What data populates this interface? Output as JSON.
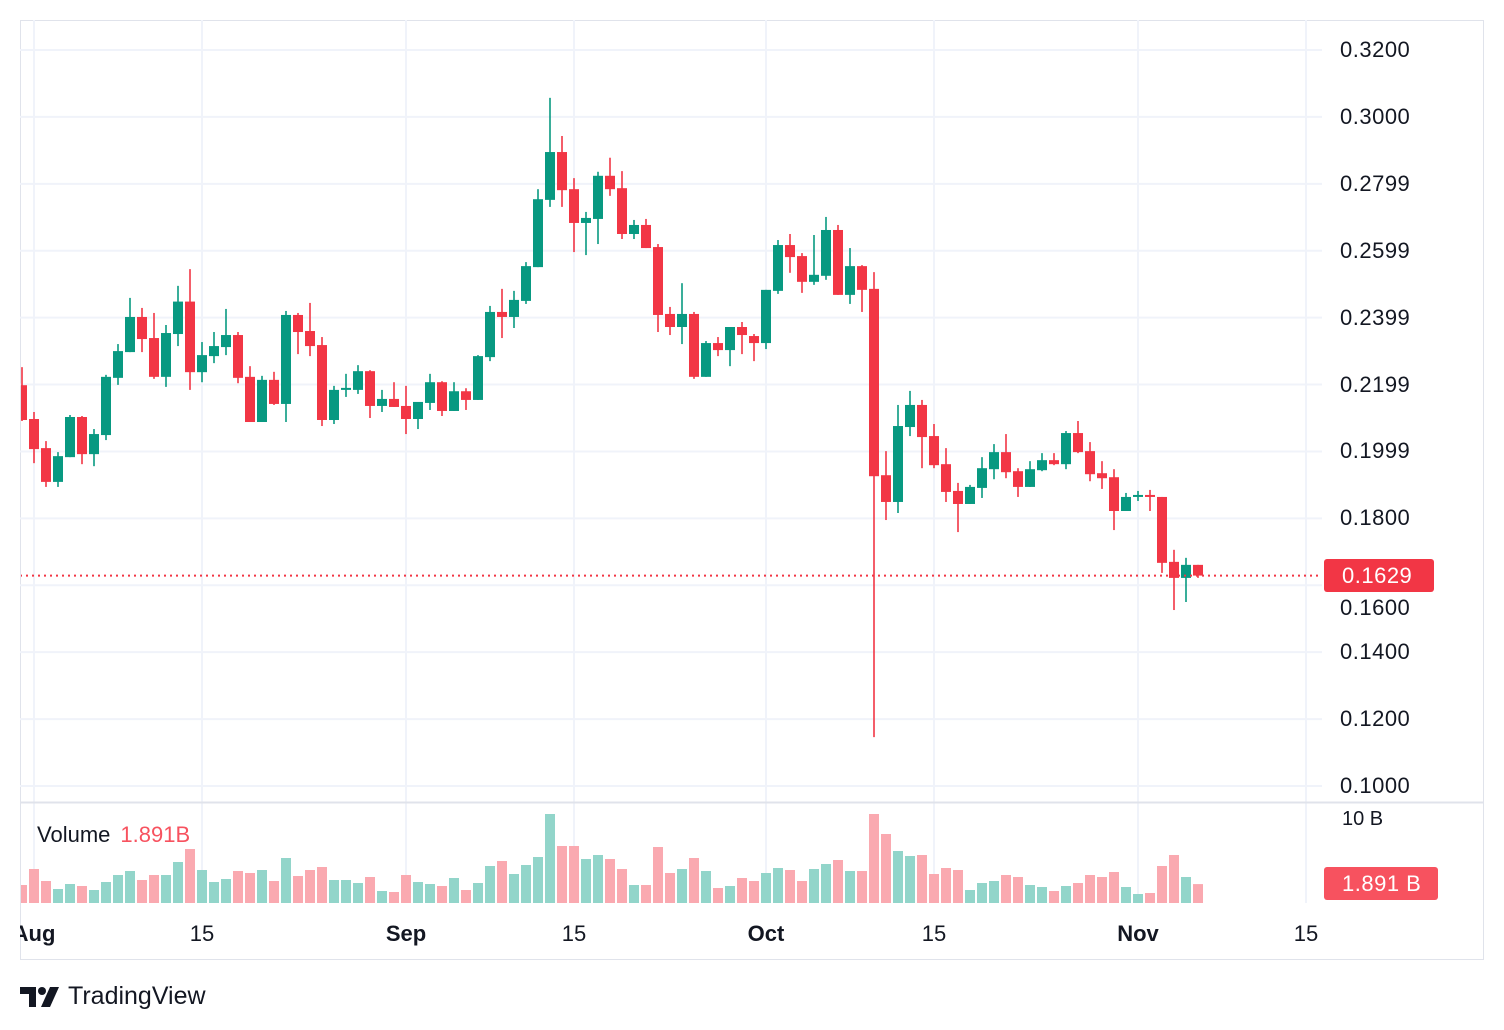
{
  "chart_data": {
    "type": "candlestick",
    "title": "",
    "start_date": "Jul 31",
    "interval": "1D",
    "ylim": [
      0.1,
      0.32
    ],
    "colors": {
      "up": "#089981",
      "down": "#f23645",
      "vol_up": "#92d5ca",
      "vol_down": "#faa9b0",
      "grid": "#f0f3fa"
    },
    "price_ticks": [
      {
        "value": 0.32,
        "label": "0.3200"
      },
      {
        "value": 0.3,
        "label": "0.3000"
      },
      {
        "value": 0.28,
        "label": "0.2799"
      },
      {
        "value": 0.26,
        "label": "0.2599"
      },
      {
        "value": 0.24,
        "label": "0.2399"
      },
      {
        "value": 0.22,
        "label": "0.2199"
      },
      {
        "value": 0.2,
        "label": "0.1999"
      },
      {
        "value": 0.18,
        "label": "0.1800"
      },
      {
        "value": 0.16,
        "label": "0.1600"
      },
      {
        "value": 0.14,
        "label": "0.1400"
      },
      {
        "value": 0.12,
        "label": "0.1200"
      },
      {
        "value": 0.1,
        "label": "0.1000"
      }
    ],
    "time_ticks": [
      {
        "day": 1,
        "label": "Aug",
        "bold": true
      },
      {
        "day": 15,
        "label": "15",
        "bold": false
      },
      {
        "day": 32,
        "label": "Sep",
        "bold": true
      },
      {
        "day": 46,
        "label": "15",
        "bold": false
      },
      {
        "day": 62,
        "label": "Oct",
        "bold": true
      },
      {
        "day": 76,
        "label": "15",
        "bold": false
      },
      {
        "day": 93,
        "label": "Nov",
        "bold": true
      },
      {
        "day": 107,
        "label": "15",
        "bold": false
      }
    ],
    "candles_ohlcv": [
      [
        0.2198,
        0.2252,
        0.2091,
        0.2094,
        1.8
      ],
      [
        0.2097,
        0.2118,
        0.1965,
        0.2007,
        3.4
      ],
      [
        0.201,
        0.2031,
        0.1894,
        0.1909,
        2.2
      ],
      [
        0.1909,
        0.1998,
        0.1894,
        0.1986,
        1.4
      ],
      [
        0.1983,
        0.2109,
        0.1983,
        0.2103,
        1.9
      ],
      [
        0.2103,
        0.2106,
        0.1962,
        0.1992,
        1.7
      ],
      [
        0.1992,
        0.2067,
        0.1956,
        0.2052,
        1.3
      ],
      [
        0.2049,
        0.2229,
        0.2034,
        0.2223,
        2.1
      ],
      [
        0.222,
        0.2321,
        0.2199,
        0.23,
        2.8
      ],
      [
        0.2297,
        0.2459,
        0.2297,
        0.2402,
        3.2
      ],
      [
        0.2402,
        0.2429,
        0.2297,
        0.2336,
        2.3
      ],
      [
        0.2339,
        0.2414,
        0.2217,
        0.2223,
        2.8
      ],
      [
        0.2223,
        0.2378,
        0.2193,
        0.2354,
        2.8
      ],
      [
        0.2351,
        0.2495,
        0.2315,
        0.2448,
        4.1
      ],
      [
        0.2448,
        0.2545,
        0.2184,
        0.2237,
        5.4
      ],
      [
        0.2237,
        0.2327,
        0.2207,
        0.2288,
        3.3
      ],
      [
        0.2285,
        0.2357,
        0.2264,
        0.2315,
        2.1
      ],
      [
        0.2312,
        0.2426,
        0.2288,
        0.2348,
        2.4
      ],
      [
        0.2348,
        0.2357,
        0.2204,
        0.222,
        3.2
      ],
      [
        0.2223,
        0.2255,
        0.2088,
        0.2088,
        3.0
      ],
      [
        0.2088,
        0.2226,
        0.2088,
        0.2214,
        3.3
      ],
      [
        0.2214,
        0.2238,
        0.2139,
        0.2142,
        2.2
      ],
      [
        0.2142,
        0.242,
        0.2088,
        0.2408,
        4.5
      ],
      [
        0.2408,
        0.2414,
        0.2291,
        0.2357,
        2.7
      ],
      [
        0.236,
        0.2444,
        0.2285,
        0.2315,
        3.3
      ],
      [
        0.2318,
        0.2342,
        0.2076,
        0.2094,
        3.6
      ],
      [
        0.2094,
        0.2196,
        0.2082,
        0.2184,
        2.3
      ],
      [
        0.2184,
        0.2232,
        0.2163,
        0.219,
        2.3
      ],
      [
        0.2184,
        0.2258,
        0.2172,
        0.224,
        2.0
      ],
      [
        0.224,
        0.2243,
        0.21,
        0.2136,
        2.6
      ],
      [
        0.2136,
        0.2184,
        0.2118,
        0.2157,
        1.2
      ],
      [
        0.2157,
        0.2207,
        0.2133,
        0.2133,
        1.1
      ],
      [
        0.2136,
        0.2196,
        0.2052,
        0.2097,
        2.8
      ],
      [
        0.2097,
        0.2145,
        0.2067,
        0.2148,
        2.1
      ],
      [
        0.2145,
        0.2232,
        0.2124,
        0.2207,
        1.9
      ],
      [
        0.2207,
        0.221,
        0.2106,
        0.2121,
        1.7
      ],
      [
        0.2121,
        0.2207,
        0.2121,
        0.218,
        2.5
      ],
      [
        0.218,
        0.2189,
        0.2124,
        0.2154,
        1.3
      ],
      [
        0.2154,
        0.2288,
        0.2154,
        0.2285,
        2.0
      ],
      [
        0.2282,
        0.2435,
        0.227,
        0.2417,
        3.7
      ],
      [
        0.2417,
        0.2486,
        0.2339,
        0.2402,
        4.2
      ],
      [
        0.2402,
        0.248,
        0.2369,
        0.2453,
        2.9
      ],
      [
        0.245,
        0.2566,
        0.2441,
        0.2554,
        3.8
      ],
      [
        0.2551,
        0.2784,
        0.2551,
        0.2754,
        4.6
      ],
      [
        0.2752,
        0.3057,
        0.2731,
        0.2895,
        8.9
      ],
      [
        0.2895,
        0.2943,
        0.2731,
        0.2781,
        5.7
      ],
      [
        0.2784,
        0.2817,
        0.2596,
        0.2683,
        5.7
      ],
      [
        0.2683,
        0.2716,
        0.2587,
        0.2698,
        4.4
      ],
      [
        0.2695,
        0.2836,
        0.262,
        0.2824,
        4.8
      ],
      [
        0.2824,
        0.2878,
        0.2764,
        0.2784,
        4.4
      ],
      [
        0.2787,
        0.2838,
        0.2635,
        0.265,
        3.4
      ],
      [
        0.265,
        0.2692,
        0.2635,
        0.2677,
        1.8
      ],
      [
        0.2677,
        0.2695,
        0.2608,
        0.2608,
        1.8
      ],
      [
        0.2611,
        0.262,
        0.2357,
        0.2408,
        5.6
      ],
      [
        0.2411,
        0.2432,
        0.2348,
        0.2372,
        3.0
      ],
      [
        0.2372,
        0.2503,
        0.2321,
        0.2411,
        3.4
      ],
      [
        0.2411,
        0.2417,
        0.2217,
        0.2223,
        4.5
      ],
      [
        0.2223,
        0.233,
        0.2223,
        0.2324,
        3.2
      ],
      [
        0.2324,
        0.2342,
        0.2285,
        0.2303,
        1.5
      ],
      [
        0.2303,
        0.2372,
        0.2255,
        0.2372,
        1.7
      ],
      [
        0.2372,
        0.2387,
        0.2291,
        0.2348,
        2.5
      ],
      [
        0.2345,
        0.2351,
        0.227,
        0.2324,
        2.2
      ],
      [
        0.2324,
        0.2483,
        0.2306,
        0.2483,
        3.0
      ],
      [
        0.248,
        0.2632,
        0.2471,
        0.2617,
        3.5
      ],
      [
        0.2617,
        0.265,
        0.2534,
        0.2581,
        3.3
      ],
      [
        0.2584,
        0.2593,
        0.2474,
        0.2507,
        2.2
      ],
      [
        0.2507,
        0.2647,
        0.2498,
        0.2528,
        3.4
      ],
      [
        0.2525,
        0.2701,
        0.2513,
        0.2662,
        3.9
      ],
      [
        0.2662,
        0.2677,
        0.2468,
        0.2468,
        4.3
      ],
      [
        0.2468,
        0.2608,
        0.2441,
        0.2554,
        3.2
      ],
      [
        0.2554,
        0.2557,
        0.2417,
        0.2483,
        3.2
      ],
      [
        0.2486,
        0.2536,
        0.1146,
        0.1926,
        8.9
      ],
      [
        0.1929,
        0.2001,
        0.1795,
        0.1849,
        6.9
      ],
      [
        0.1849,
        0.2139,
        0.1816,
        0.2076,
        5.2
      ],
      [
        0.2073,
        0.2181,
        0.2046,
        0.2139,
        4.7
      ],
      [
        0.2139,
        0.2154,
        0.195,
        0.2043,
        4.8
      ],
      [
        0.2046,
        0.2082,
        0.195,
        0.1959,
        2.9
      ],
      [
        0.1962,
        0.201,
        0.1849,
        0.1879,
        3.5
      ],
      [
        0.1882,
        0.1906,
        0.1759,
        0.1843,
        3.3
      ],
      [
        0.1843,
        0.19,
        0.1843,
        0.1894,
        1.3
      ],
      [
        0.1891,
        0.1983,
        0.1861,
        0.195,
        2.0
      ],
      [
        0.1947,
        0.2022,
        0.1917,
        0.1998,
        2.2
      ],
      [
        0.1998,
        0.2052,
        0.192,
        0.1938,
        2.8
      ],
      [
        0.1941,
        0.195,
        0.1864,
        0.1894,
        2.6
      ],
      [
        0.1894,
        0.1971,
        0.1894,
        0.1947,
        1.8
      ],
      [
        0.1944,
        0.1995,
        0.1941,
        0.1974,
        1.6
      ],
      [
        0.1974,
        0.1995,
        0.1959,
        0.1962,
        1.2
      ],
      [
        0.1962,
        0.2061,
        0.1947,
        0.2055,
        1.7
      ],
      [
        0.2055,
        0.2091,
        0.1995,
        0.1998,
        2.0
      ],
      [
        0.2001,
        0.2028,
        0.1911,
        0.1932,
        2.8
      ],
      [
        0.1935,
        0.1971,
        0.1888,
        0.192,
        2.6
      ],
      [
        0.1923,
        0.1947,
        0.1765,
        0.1822,
        3.1
      ],
      [
        0.1822,
        0.1876,
        0.1822,
        0.1864,
        1.6
      ],
      [
        0.1864,
        0.1882,
        0.1852,
        0.187,
        0.9
      ],
      [
        0.187,
        0.1885,
        0.1822,
        0.1864,
        1.0
      ],
      [
        0.1864,
        0.1864,
        0.1637,
        0.1667,
        3.7
      ],
      [
        0.167,
        0.1706,
        0.1526,
        0.1622,
        4.8
      ],
      [
        0.1622,
        0.1682,
        0.155,
        0.1661,
        2.6
      ],
      [
        0.1661,
        0.1661,
        0.1622,
        0.1629,
        1.891
      ]
    ],
    "volume_unit": "B",
    "volume_scale_label": "10 B",
    "last_price": 0.1629,
    "last_price_label": "0.1629",
    "last_volume_label": "1.891 B"
  },
  "volume_legend": {
    "title": "Volume",
    "value": "1.891B"
  },
  "brand": {
    "name": "TradingView"
  }
}
